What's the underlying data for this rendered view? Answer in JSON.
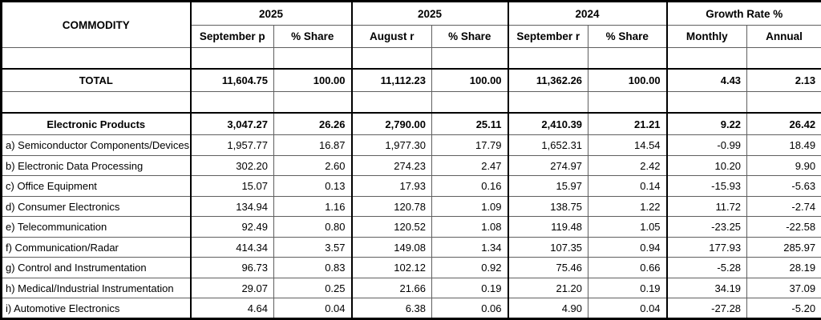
{
  "colors": {
    "background": "#ffffff",
    "text": "#000000",
    "border_outer": "#000000",
    "border_inner": "#5f5f5f"
  },
  "table": {
    "header": {
      "commodity_label": "COMMODITY",
      "groups": [
        {
          "label": "2025",
          "sub": [
            "September p",
            "% Share"
          ]
        },
        {
          "label": "2025",
          "sub": [
            "August r",
            "% Share"
          ]
        },
        {
          "label": "2024",
          "sub": [
            "September r",
            "% Share"
          ]
        },
        {
          "label": "Growth Rate %",
          "sub": [
            "Monthly",
            "Annual"
          ]
        }
      ]
    },
    "rows": [
      {
        "type": "spacer"
      },
      {
        "type": "total",
        "label": "TOTAL",
        "values": [
          "11,604.75",
          "100.00",
          "11,112.23",
          "100.00",
          "11,362.26",
          "100.00",
          "4.43",
          "2.13"
        ]
      },
      {
        "type": "spacer"
      },
      {
        "type": "group",
        "label": "Electronic Products",
        "values": [
          "3,047.27",
          "26.26",
          "2,790.00",
          "25.11",
          "2,410.39",
          "21.21",
          "9.22",
          "26.42"
        ]
      },
      {
        "type": "item",
        "label": "a) Semiconductor Components/Devices",
        "values": [
          "1,957.77",
          "16.87",
          "1,977.30",
          "17.79",
          "1,652.31",
          "14.54",
          "-0.99",
          "18.49"
        ]
      },
      {
        "type": "item",
        "label": "b) Electronic Data Processing",
        "values": [
          "302.20",
          "2.60",
          "274.23",
          "2.47",
          "274.97",
          "2.42",
          "10.20",
          "9.90"
        ]
      },
      {
        "type": "item",
        "label": "c) Office Equipment",
        "values": [
          "15.07",
          "0.13",
          "17.93",
          "0.16",
          "15.97",
          "0.14",
          "-15.93",
          "-5.63"
        ]
      },
      {
        "type": "item",
        "label": "d) Consumer Electronics",
        "values": [
          "134.94",
          "1.16",
          "120.78",
          "1.09",
          "138.75",
          "1.22",
          "11.72",
          "-2.74"
        ]
      },
      {
        "type": "item",
        "label": "e) Telecommunication",
        "values": [
          "92.49",
          "0.80",
          "120.52",
          "1.08",
          "119.48",
          "1.05",
          "-23.25",
          "-22.58"
        ]
      },
      {
        "type": "item",
        "label": "f) Communication/Radar",
        "values": [
          "414.34",
          "3.57",
          "149.08",
          "1.34",
          "107.35",
          "0.94",
          "177.93",
          "285.97"
        ]
      },
      {
        "type": "item",
        "label": "g) Control and Instrumentation",
        "values": [
          "96.73",
          "0.83",
          "102.12",
          "0.92",
          "75.46",
          "0.66",
          "-5.28",
          "28.19"
        ]
      },
      {
        "type": "item",
        "label": "h) Medical/Industrial Instrumentation",
        "values": [
          "29.07",
          "0.25",
          "21.66",
          "0.19",
          "21.20",
          "0.19",
          "34.19",
          "37.09"
        ]
      },
      {
        "type": "item",
        "label": "i) Automotive Electronics",
        "values": [
          "4.64",
          "0.04",
          "6.38",
          "0.06",
          "4.90",
          "0.04",
          "-27.28",
          "-5.20"
        ]
      }
    ]
  }
}
